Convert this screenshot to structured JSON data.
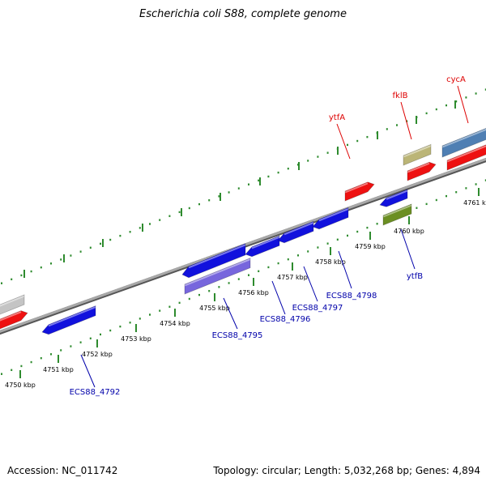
{
  "title": "Escherichia coli S88, complete genome",
  "footer": {
    "accession": "Accession: NC_011742",
    "topology": "Topology: circular; Length: 5,032,268 bp; Genes: 4,894"
  },
  "colors": {
    "backbone": "#7a7a7a",
    "ticks": "#2e8b2e",
    "gene_red": "#ee1111",
    "gene_blue": "#1111dd",
    "gene_purple": "#7766dd",
    "gene_olive": "#bbb577",
    "gene_steelblue": "#4f7fb3",
    "gene_green": "#6b8f23",
    "gene_gray": "#c4c4c4",
    "label_red": "#dd0000",
    "label_blue": "#0000aa"
  },
  "scale_labels": [
    "4750 kbp",
    "4751 kbp",
    "4752 kbp",
    "4753 kbp",
    "4754 kbp",
    "4755 kbp",
    "4756 kbp",
    "4757 kbp",
    "4758 kbp",
    "4759 kbp",
    "4760 kbp",
    "4761 kbp"
  ],
  "gene_labels_top": [
    "ytfA",
    "fklB",
    "cycA"
  ],
  "gene_labels_bottom": [
    "ECS88_4792",
    "ECS88_4795",
    "ECS88_4796",
    "ECS88_4797",
    "ECS88_4798",
    "ytfB"
  ]
}
